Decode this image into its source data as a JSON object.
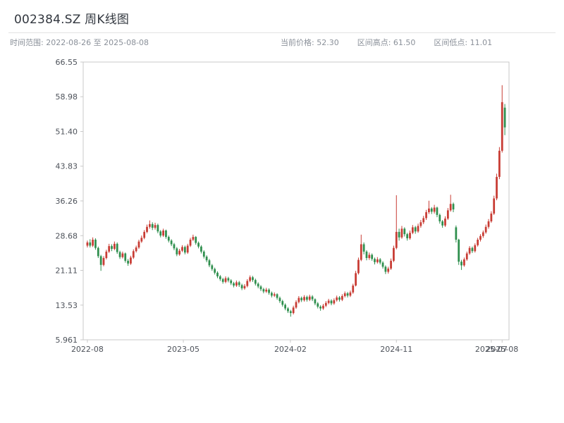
{
  "header": {
    "title": "002384.SZ 周K线图"
  },
  "meta": {
    "time_range": "时间范围: 2022-08-26 至 2025-08-08",
    "current_price": "当前价格: 52.30",
    "range_high": "区间高点: 61.50",
    "range_low": "区间低点: 11.01"
  },
  "chart_data": {
    "type": "candlestick",
    "title": "002384.SZ 周K线图",
    "symbol": "002384.SZ",
    "period": "weekly",
    "start_date": "2022-08-26",
    "end_date": "2025-08-08",
    "current_price": 52.3,
    "range_high": 61.5,
    "range_low": 11.01,
    "ylim": [
      5.961,
      66.55
    ],
    "grid": false,
    "up_color": "#c83c34",
    "down_color": "#2f8f4e",
    "axis_color": "#c9c9c9",
    "yticks": [
      {
        "value": 66.55,
        "label": "66.55"
      },
      {
        "value": 58.98,
        "label": "58.98"
      },
      {
        "value": 51.4,
        "label": "51.40"
      },
      {
        "value": 43.83,
        "label": "43.83"
      },
      {
        "value": 36.26,
        "label": "36.26"
      },
      {
        "value": 28.68,
        "label": "28.68"
      },
      {
        "value": 21.11,
        "label": "21.11"
      },
      {
        "value": 13.53,
        "label": "13.53"
      },
      {
        "value": 5.961,
        "label": "5.961"
      }
    ],
    "xticks": [
      {
        "pos": 0,
        "label": "2022-08"
      },
      {
        "pos": 35.4,
        "label": "2023-05"
      },
      {
        "pos": 74.9,
        "label": "2024-02"
      },
      {
        "pos": 114,
        "label": "2024-11"
      },
      {
        "pos": 149,
        "label": "2025-07"
      },
      {
        "pos": 153,
        "label": "2025-08"
      }
    ],
    "candles": [
      [
        26.5,
        27.6,
        26.1,
        27.2
      ],
      [
        27.2,
        27.9,
        26.1,
        26.5
      ],
      [
        26.5,
        28.3,
        26.2,
        27.8
      ],
      [
        27.8,
        28.1,
        25.6,
        26.0
      ],
      [
        26.0,
        26.3,
        23.8,
        24.2
      ],
      [
        24.2,
        24.5,
        21.0,
        22.3
      ],
      [
        22.3,
        24.2,
        22.0,
        23.8
      ],
      [
        23.8,
        25.6,
        23.5,
        25.2
      ],
      [
        25.2,
        26.9,
        24.9,
        26.4
      ],
      [
        26.4,
        26.8,
        25.3,
        25.8
      ],
      [
        25.8,
        27.4,
        25.5,
        26.9
      ],
      [
        26.9,
        27.2,
        24.7,
        25.1
      ],
      [
        25.1,
        25.4,
        23.6,
        24.0
      ],
      [
        24.0,
        25.2,
        23.7,
        24.8
      ],
      [
        24.8,
        25.0,
        22.8,
        23.2
      ],
      [
        23.2,
        23.6,
        22.1,
        22.6
      ],
      [
        22.6,
        24.3,
        22.3,
        23.9
      ],
      [
        23.9,
        25.7,
        23.6,
        25.3
      ],
      [
        25.3,
        26.5,
        25.0,
        26.1
      ],
      [
        26.1,
        27.8,
        25.8,
        27.4
      ],
      [
        27.4,
        28.7,
        27.1,
        28.2
      ],
      [
        28.2,
        29.9,
        27.9,
        29.5
      ],
      [
        29.5,
        31.1,
        29.2,
        30.6
      ],
      [
        30.6,
        32.0,
        30.2,
        31.2
      ],
      [
        31.2,
        31.6,
        29.9,
        30.4
      ],
      [
        30.4,
        31.5,
        30.0,
        31.0
      ],
      [
        31.0,
        31.3,
        29.2,
        29.6
      ],
      [
        29.6,
        29.9,
        28.3,
        28.7
      ],
      [
        28.7,
        30.2,
        28.4,
        29.8
      ],
      [
        29.8,
        30.0,
        28.0,
        28.4
      ],
      [
        28.4,
        28.7,
        27.2,
        27.6
      ],
      [
        27.6,
        27.9,
        26.4,
        26.8
      ],
      [
        26.8,
        27.1,
        25.5,
        25.9
      ],
      [
        25.9,
        26.2,
        24.2,
        24.6
      ],
      [
        24.6,
        25.8,
        24.3,
        25.4
      ],
      [
        25.4,
        26.6,
        25.1,
        26.2
      ],
      [
        26.2,
        26.5,
        24.6,
        25.0
      ],
      [
        25.0,
        26.9,
        24.7,
        26.5
      ],
      [
        26.5,
        28.2,
        26.2,
        27.8
      ],
      [
        27.8,
        28.9,
        27.5,
        28.4
      ],
      [
        28.4,
        28.6,
        26.7,
        27.1
      ],
      [
        27.1,
        27.4,
        25.9,
        26.3
      ],
      [
        26.3,
        26.6,
        24.8,
        25.2
      ],
      [
        25.2,
        25.5,
        23.7,
        24.1
      ],
      [
        24.1,
        24.4,
        22.9,
        23.3
      ],
      [
        23.3,
        23.6,
        21.8,
        22.2
      ],
      [
        22.2,
        22.5,
        21.0,
        21.4
      ],
      [
        21.4,
        21.7,
        20.2,
        20.6
      ],
      [
        20.6,
        20.9,
        19.4,
        19.8
      ],
      [
        19.8,
        20.1,
        18.8,
        19.2
      ],
      [
        19.2,
        19.5,
        18.2,
        18.6
      ],
      [
        18.6,
        19.8,
        18.3,
        19.4
      ],
      [
        19.4,
        19.7,
        18.5,
        18.9
      ],
      [
        18.9,
        19.2,
        17.9,
        18.3
      ],
      [
        18.3,
        18.6,
        17.4,
        17.8
      ],
      [
        17.8,
        18.9,
        17.5,
        18.5
      ],
      [
        18.5,
        18.8,
        17.5,
        17.9
      ],
      [
        17.9,
        18.2,
        16.8,
        17.2
      ],
      [
        17.2,
        18.1,
        16.9,
        17.7
      ],
      [
        17.7,
        19.2,
        17.4,
        18.8
      ],
      [
        18.8,
        20.0,
        18.5,
        19.6
      ],
      [
        19.6,
        19.9,
        18.6,
        19.0
      ],
      [
        19.0,
        19.3,
        17.8,
        18.2
      ],
      [
        18.2,
        18.5,
        17.2,
        17.6
      ],
      [
        17.6,
        17.9,
        16.6,
        17.0
      ],
      [
        17.0,
        17.3,
        16.1,
        16.5
      ],
      [
        16.5,
        17.3,
        16.2,
        16.9
      ],
      [
        16.9,
        17.2,
        15.8,
        16.2
      ],
      [
        16.2,
        16.5,
        15.2,
        15.6
      ],
      [
        15.6,
        16.3,
        15.3,
        15.9
      ],
      [
        15.9,
        16.1,
        14.7,
        15.1
      ],
      [
        15.1,
        15.4,
        14.0,
        14.4
      ],
      [
        14.4,
        14.7,
        13.2,
        13.6
      ],
      [
        13.6,
        13.9,
        12.4,
        12.8
      ],
      [
        12.8,
        13.1,
        11.8,
        12.2
      ],
      [
        12.2,
        12.5,
        11.01,
        11.8
      ],
      [
        11.8,
        13.4,
        11.5,
        13.0
      ],
      [
        13.0,
        14.6,
        12.7,
        14.2
      ],
      [
        14.2,
        15.5,
        13.9,
        15.1
      ],
      [
        15.1,
        15.4,
        14.2,
        14.6
      ],
      [
        14.6,
        15.7,
        14.3,
        15.3
      ],
      [
        15.3,
        15.6,
        14.3,
        14.7
      ],
      [
        14.7,
        15.8,
        14.4,
        15.4
      ],
      [
        15.4,
        15.7,
        14.4,
        14.8
      ],
      [
        14.8,
        15.0,
        13.5,
        13.9
      ],
      [
        13.9,
        14.2,
        12.8,
        13.2
      ],
      [
        13.2,
        13.5,
        12.3,
        12.8
      ],
      [
        12.8,
        13.8,
        12.5,
        13.4
      ],
      [
        13.4,
        14.4,
        13.1,
        14.0
      ],
      [
        14.0,
        14.9,
        13.7,
        14.5
      ],
      [
        14.5,
        14.8,
        13.5,
        13.9
      ],
      [
        13.9,
        15.0,
        13.6,
        14.6
      ],
      [
        14.6,
        15.6,
        14.3,
        15.2
      ],
      [
        15.2,
        15.5,
        14.3,
        14.7
      ],
      [
        14.7,
        15.9,
        14.4,
        15.5
      ],
      [
        15.5,
        16.5,
        15.2,
        16.1
      ],
      [
        16.1,
        16.4,
        15.2,
        15.6
      ],
      [
        15.6,
        16.7,
        15.3,
        16.3
      ],
      [
        16.3,
        18.2,
        16.0,
        17.8
      ],
      [
        17.8,
        21.0,
        17.6,
        20.5
      ],
      [
        20.5,
        23.9,
        20.2,
        23.4
      ],
      [
        23.4,
        28.9,
        23.1,
        26.8
      ],
      [
        26.8,
        27.2,
        24.6,
        25.2
      ],
      [
        25.2,
        25.5,
        23.3,
        23.8
      ],
      [
        23.8,
        25.0,
        23.4,
        24.5
      ],
      [
        24.5,
        24.8,
        23.2,
        23.6
      ],
      [
        23.6,
        23.9,
        22.4,
        22.9
      ],
      [
        22.9,
        24.0,
        22.6,
        23.5
      ],
      [
        23.5,
        23.8,
        22.4,
        22.8
      ],
      [
        22.8,
        23.1,
        21.5,
        21.9
      ],
      [
        21.9,
        22.2,
        20.3,
        20.8
      ],
      [
        20.8,
        21.9,
        20.4,
        21.5
      ],
      [
        21.5,
        23.7,
        21.2,
        23.2
      ],
      [
        23.2,
        26.5,
        22.9,
        26.0
      ],
      [
        26.0,
        37.5,
        25.7,
        29.5
      ],
      [
        29.5,
        30.2,
        27.6,
        28.3
      ],
      [
        28.3,
        30.8,
        28.0,
        30.2
      ],
      [
        30.2,
        30.5,
        28.5,
        29.0
      ],
      [
        29.0,
        29.3,
        27.6,
        28.1
      ],
      [
        28.1,
        29.8,
        27.8,
        29.3
      ],
      [
        29.3,
        31.0,
        29.0,
        30.5
      ],
      [
        30.5,
        30.8,
        29.1,
        29.6
      ],
      [
        29.6,
        31.3,
        29.3,
        30.8
      ],
      [
        30.8,
        32.1,
        30.4,
        31.6
      ],
      [
        31.6,
        33.0,
        31.2,
        32.5
      ],
      [
        32.5,
        34.3,
        32.1,
        33.8
      ],
      [
        33.8,
        36.3,
        33.4,
        34.6
      ],
      [
        34.6,
        34.9,
        33.4,
        33.9
      ],
      [
        33.9,
        35.4,
        33.5,
        34.8
      ],
      [
        34.8,
        35.0,
        32.7,
        33.2
      ],
      [
        33.2,
        33.5,
        31.3,
        31.8
      ],
      [
        31.8,
        32.1,
        30.4,
        30.9
      ],
      [
        30.9,
        32.9,
        30.6,
        32.4
      ],
      [
        32.4,
        34.7,
        32.1,
        34.2
      ],
      [
        34.2,
        37.6,
        33.9,
        35.6
      ],
      [
        35.6,
        35.9,
        33.8,
        34.4
      ],
      [
        30.5,
        30.9,
        27.2,
        27.8
      ],
      [
        27.8,
        28.0,
        22.3,
        23.0
      ],
      [
        23.0,
        23.4,
        21.2,
        22.2
      ],
      [
        22.2,
        23.9,
        21.9,
        23.5
      ],
      [
        23.5,
        25.2,
        23.2,
        24.8
      ],
      [
        24.8,
        26.4,
        24.5,
        26.0
      ],
      [
        26.0,
        26.3,
        24.9,
        25.3
      ],
      [
        25.3,
        27.0,
        25.0,
        26.6
      ],
      [
        26.6,
        28.2,
        26.3,
        27.8
      ],
      [
        27.8,
        29.0,
        27.4,
        28.6
      ],
      [
        28.6,
        29.8,
        28.2,
        29.4
      ],
      [
        29.4,
        31.1,
        29.1,
        30.6
      ],
      [
        30.6,
        32.3,
        30.2,
        31.8
      ],
      [
        31.8,
        34.0,
        31.5,
        33.5
      ],
      [
        33.5,
        37.4,
        33.2,
        36.8
      ],
      [
        36.8,
        42.2,
        36.4,
        41.5
      ],
      [
        41.5,
        48.0,
        41.0,
        47.2
      ],
      [
        47.2,
        61.5,
        46.8,
        57.8
      ],
      [
        56.6,
        57.4,
        50.6,
        52.3
      ]
    ]
  }
}
